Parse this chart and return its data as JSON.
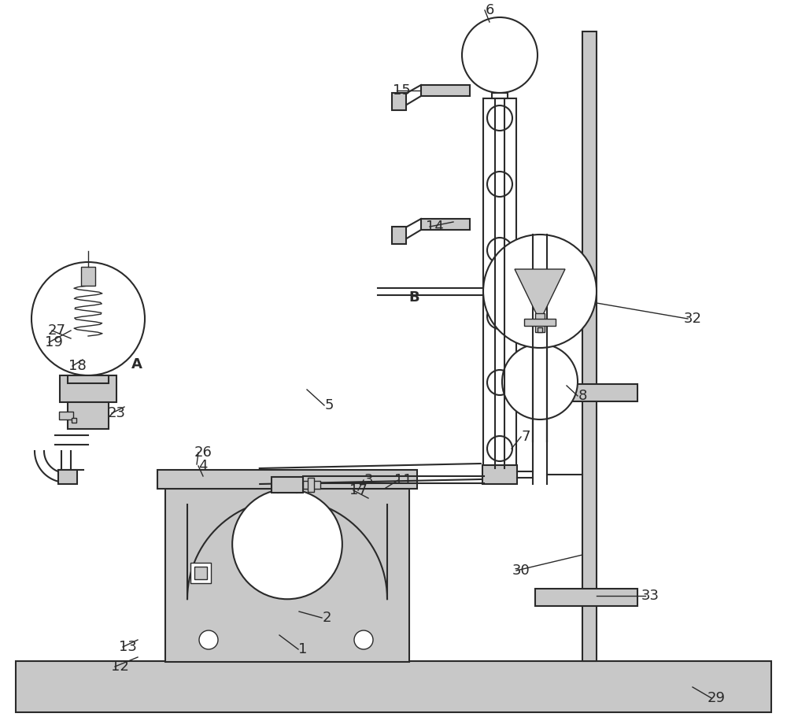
{
  "bg_color": "#ffffff",
  "lc": "#2a2a2a",
  "lgc": "#c8c8c8",
  "wc": "#d5dde5",
  "fig_w": 10.0,
  "fig_h": 9.25
}
